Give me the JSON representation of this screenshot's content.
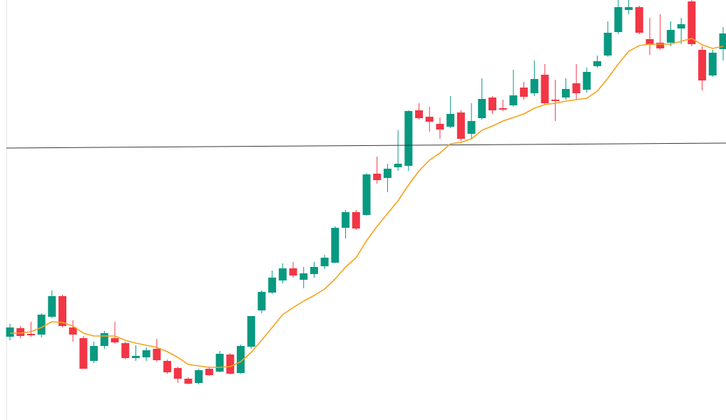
{
  "chart_data": {
    "type": "candlestick",
    "up_color": "#089981",
    "down_color": "#f23645",
    "ma_color": "#f7a21b",
    "line_color": "#3a3a3a",
    "ylim": [
      0,
      590
    ],
    "open": [
      117,
      129,
      121,
      120,
      145,
      174,
      130,
      115,
      83,
      104,
      115,
      108,
      87,
      88,
      100,
      83,
      73,
      58,
      52,
      72,
      68,
      92,
      66,
      103,
      154,
      179,
      196,
      213,
      197,
      205,
      216,
      221,
      270,
      292,
      288,
      346,
      340,
      355,
      357,
      435,
      426,
      416,
      412,
      432,
      402,
      424,
      453,
      438,
      442,
      467,
      459,
      485,
      450,
      453,
      473,
      464,
      497,
      512,
      545,
      576,
      580,
      535,
      530,
      530,
      550,
      588,
      520,
      484,
      521
    ],
    "high": [
      135,
      132,
      138,
      150,
      182,
      176,
      140,
      118,
      110,
      125,
      138,
      110,
      105,
      102,
      114,
      85,
      75,
      60,
      72,
      75,
      97,
      94,
      106,
      146,
      182,
      210,
      220,
      222,
      215,
      222,
      232,
      272,
      295,
      295,
      347,
      370,
      360,
      407,
      435,
      445,
      440,
      425,
      455,
      435,
      445,
      480,
      455,
      450,
      492,
      475,
      505,
      500,
      478,
      480,
      500,
      495,
      512,
      560,
      590,
      590,
      582,
      565,
      570,
      560,
      565,
      590,
      525,
      520,
      552
    ],
    "low": [
      112,
      115,
      117,
      116,
      143,
      130,
      110,
      72,
      80,
      100,
      107,
      85,
      83,
      83,
      82,
      65,
      52,
      50,
      50,
      62,
      67,
      64,
      65,
      100,
      150,
      177,
      192,
      200,
      185,
      200,
      212,
      220,
      255,
      267,
      287,
      332,
      320,
      350,
      350,
      422,
      405,
      395,
      410,
      392,
      395,
      422,
      430,
      434,
      440,
      450,
      455,
      443,
      420,
      450,
      450,
      460,
      495,
      510,
      542,
      570,
      542,
      513,
      520,
      525,
      528,
      525,
      463,
      482,
      505
    ],
    "close": [
      130,
      118,
      119,
      148,
      174,
      132,
      120,
      72,
      104,
      122,
      109,
      87,
      90,
      98,
      84,
      67,
      58,
      51,
      70,
      63,
      93,
      65,
      104,
      146,
      180,
      200,
      213,
      203,
      206,
      215,
      228,
      270,
      292,
      269,
      345,
      337,
      353,
      360,
      434,
      424,
      419,
      408,
      430,
      395,
      420,
      451,
      435,
      436,
      456,
      454,
      479,
      445,
      448,
      465,
      459,
      489,
      504,
      544,
      580,
      580,
      544,
      527,
      522,
      548,
      556,
      528,
      477,
      516,
      543
    ],
    "ma": [
      122,
      122,
      124,
      130,
      138,
      137,
      132,
      122,
      118,
      118,
      118,
      112,
      108,
      105,
      102,
      96,
      88,
      78,
      76,
      74,
      74,
      75,
      82,
      95,
      112,
      130,
      148,
      158,
      167,
      175,
      184,
      198,
      215,
      228,
      252,
      272,
      290,
      308,
      330,
      350,
      365,
      375,
      388,
      390,
      395,
      407,
      413,
      420,
      425,
      430,
      438,
      443,
      445,
      448,
      450,
      452,
      462,
      480,
      500,
      518,
      526,
      528,
      528,
      528,
      532,
      536,
      527,
      522,
      525
    ],
    "trend_line": {
      "start": 382,
      "end": 389
    }
  }
}
